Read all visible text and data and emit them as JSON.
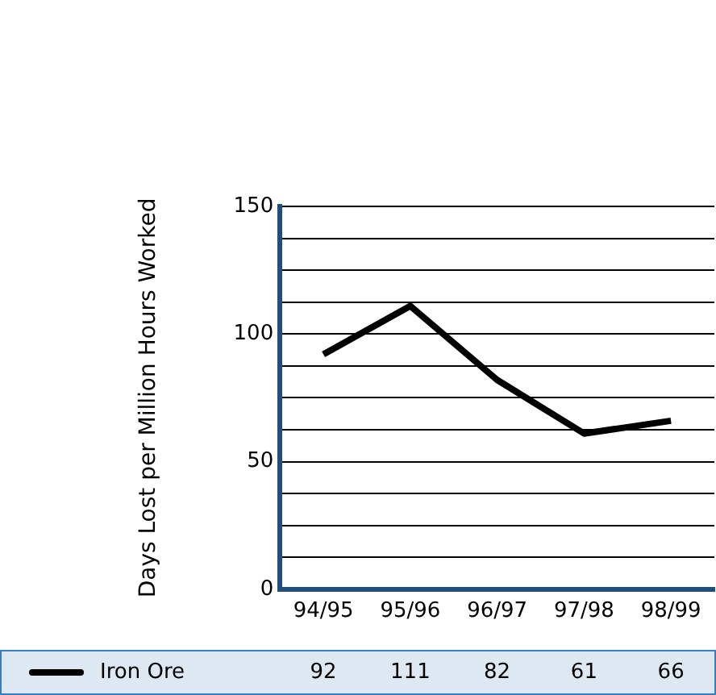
{
  "chart_data": {
    "type": "line",
    "ylabel": "Days Lost per Million Hours Worked",
    "categories": [
      "94/95",
      "95/96",
      "96/97",
      "97/98",
      "98/99"
    ],
    "series": [
      {
        "name": "Iron Ore",
        "color": "#000000",
        "values": [
          92,
          111,
          82,
          61,
          66
        ]
      }
    ],
    "ylim": [
      0,
      150
    ],
    "yticks": [
      0,
      {
        "value": 12.5,
        "label": null
      },
      {
        "value": 25,
        "label": null
      },
      {
        "value": 37.5,
        "label": null
      },
      50,
      {
        "value": 62.5,
        "label": null
      },
      {
        "value": 75,
        "label": null
      },
      {
        "value": 87.5,
        "label": null
      },
      100,
      {
        "value": 112.5,
        "label": null
      },
      {
        "value": 125,
        "label": null
      },
      {
        "value": 137.5,
        "label": null
      },
      150
    ],
    "grid": "y",
    "legend": "bottom",
    "data_labels": true,
    "marker": "none"
  }
}
